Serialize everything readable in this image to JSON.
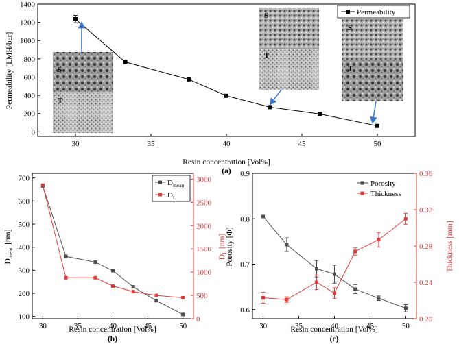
{
  "chart_data": [
    {
      "panel_label": "(a)",
      "type": "line",
      "xlabel": "Resin concentration [Vol%]",
      "ylabel": "Permeability [LMH/bar]",
      "xlim": [
        27.5,
        52.5
      ],
      "ylim": [
        -50,
        1400
      ],
      "xticks": [
        30,
        35,
        40,
        45,
        50
      ],
      "yticks": [
        0,
        200,
        400,
        600,
        800,
        1000,
        1200,
        1400
      ],
      "legend_position": "top-right",
      "grid": false,
      "series": [
        {
          "name": "Permeability",
          "color": "#000000",
          "marker": "square",
          "x": [
            30,
            33.3,
            37.5,
            40,
            42.9,
            46.2,
            50
          ],
          "y": [
            1235,
            765,
            575,
            395,
            270,
            195,
            65
          ],
          "err": [
            40,
            0,
            0,
            0,
            0,
            0,
            0
          ]
        }
      ],
      "inset_labels": [
        "S",
        "T",
        "S",
        "T",
        "S",
        "T"
      ]
    },
    {
      "panel_label": "(b)",
      "type": "line",
      "xlabel": "Resin concentration [Vol%]",
      "ylabel_left": {
        "main": "D",
        "sub": "mean",
        "unit": " [nm]"
      },
      "ylabel_right": {
        "main": "D",
        "sub": "L",
        "unit": " [nm]"
      },
      "xlim": [
        28.5,
        51.5
      ],
      "ylim_left": [
        90,
        720
      ],
      "ylim_right": [
        0,
        3125
      ],
      "xticks": [
        30,
        35,
        40,
        45,
        50
      ],
      "yticks_left": [
        100,
        200,
        300,
        400,
        500,
        600,
        700
      ],
      "yticks_right": [
        0,
        500,
        1000,
        1500,
        2000,
        2500,
        3000
      ],
      "legend_position": "top-right",
      "grid": false,
      "series": [
        {
          "legend": {
            "main": "D",
            "sub": "mean"
          },
          "color": "#4d4d4d",
          "axis": "left",
          "x": [
            30,
            33.3,
            37.5,
            40,
            42.9,
            46.2,
            50
          ],
          "y": [
            665,
            360,
            335,
            298,
            228,
            168,
            108
          ]
        },
        {
          "legend": {
            "main": "D",
            "sub": "L"
          },
          "color": "#e53a3a",
          "axis": "right",
          "x": [
            30,
            33.3,
            37.5,
            40,
            42.9,
            46.2,
            50
          ],
          "y": [
            2870,
            880,
            880,
            700,
            580,
            500,
            450
          ]
        }
      ]
    },
    {
      "panel_label": "(c)",
      "type": "line",
      "xlabel": "Resin concentration [Vol%]",
      "ylabel_left": "Porosity [Φ]",
      "ylabel_right": "Thickness [mm]",
      "xlim": [
        28.5,
        51.5
      ],
      "ylim_left": [
        0.58,
        0.9
      ],
      "ylim_right": [
        0.2,
        0.36
      ],
      "xticks": [
        30,
        35,
        40,
        45,
        50
      ],
      "yticks_left": [
        0.6,
        0.7,
        0.8,
        0.9
      ],
      "yticks_right": [
        0.2,
        0.24,
        0.28,
        0.32,
        0.36
      ],
      "legend_position": "top-right",
      "grid": false,
      "series": [
        {
          "name": "Porosity",
          "color": "#4d4d4d",
          "axis": "left",
          "x": [
            30,
            33.3,
            37.5,
            40,
            42.9,
            46.2,
            50
          ],
          "y": [
            0.805,
            0.743,
            0.69,
            0.678,
            0.645,
            0.625,
            0.603
          ],
          "err": [
            0,
            0.015,
            0.018,
            0.02,
            0.01,
            0.005,
            0.008
          ]
        },
        {
          "name": "Thickness",
          "color": "#e53a3a",
          "axis": "right",
          "x": [
            30,
            33.3,
            37.5,
            40,
            42.9,
            46.2,
            50
          ],
          "y": [
            0.223,
            0.221,
            0.24,
            0.228,
            0.274,
            0.287,
            0.31
          ],
          "err": [
            0.006,
            0.003,
            0.008,
            0.006,
            0.004,
            0.008,
            0.006
          ]
        }
      ]
    }
  ]
}
